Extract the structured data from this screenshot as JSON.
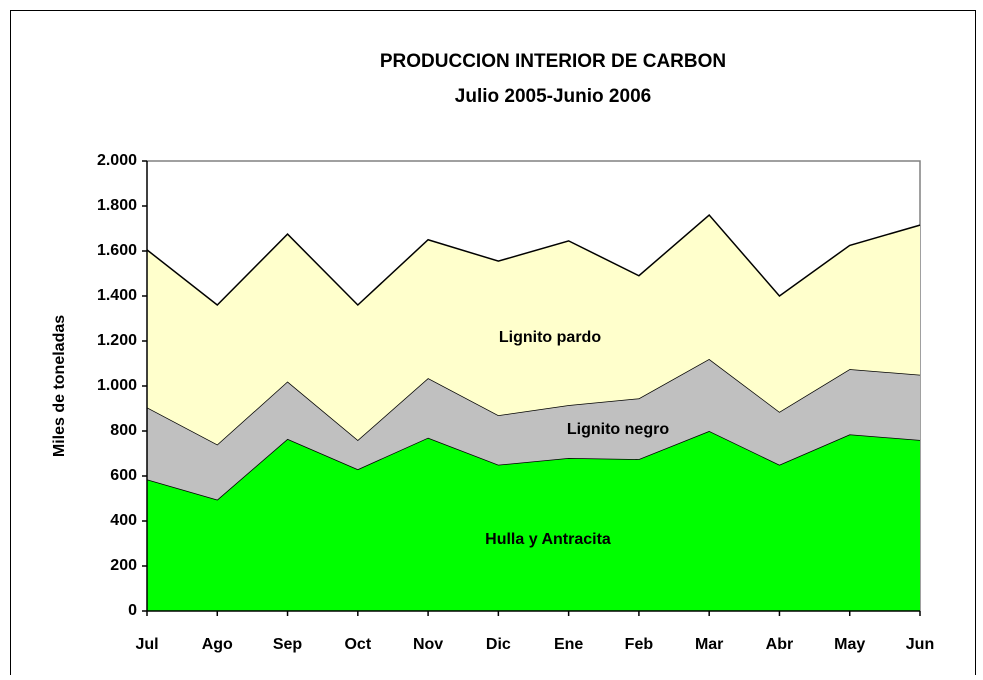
{
  "chart_data": {
    "type": "stacked_area",
    "title": "PRODUCCION INTERIOR DE CARBON",
    "subtitle": "Julio 2005-Junio 2006",
    "y_label": "Miles de toneladas",
    "categories": [
      "Jul",
      "Ago",
      "Sep",
      "Oct",
      "Nov",
      "Dic",
      "Ene",
      "Feb",
      "Mar",
      "Abr",
      "May",
      "Jun"
    ],
    "series": [
      {
        "name": "Hulla y Antracita",
        "color": "#00ff00",
        "values": [
          585,
          495,
          765,
          630,
          770,
          650,
          680,
          675,
          800,
          650,
          785,
          760
        ]
      },
      {
        "name": "Lignito negro",
        "color": "#c0c0c0",
        "values": [
          320,
          245,
          255,
          130,
          265,
          220,
          235,
          270,
          320,
          235,
          290,
          290
        ]
      },
      {
        "name": "Lignito pardo",
        "color": "#ffffcc",
        "values": [
          700,
          620,
          655,
          600,
          615,
          685,
          730,
          545,
          640,
          515,
          550,
          665
        ]
      }
    ],
    "ylim": [
      0,
      2000
    ],
    "yticks": [
      0,
      200,
      400,
      600,
      800,
      {
        "value": 1000,
        "label": "1.000"
      },
      {
        "value": 1200,
        "label": "1.200"
      },
      {
        "value": 1400,
        "label": "1.400"
      },
      {
        "value": 1600,
        "label": "1.600"
      },
      {
        "value": 1800,
        "label": "1.800"
      },
      {
        "value": 2000,
        "label": "2.000"
      }
    ]
  }
}
